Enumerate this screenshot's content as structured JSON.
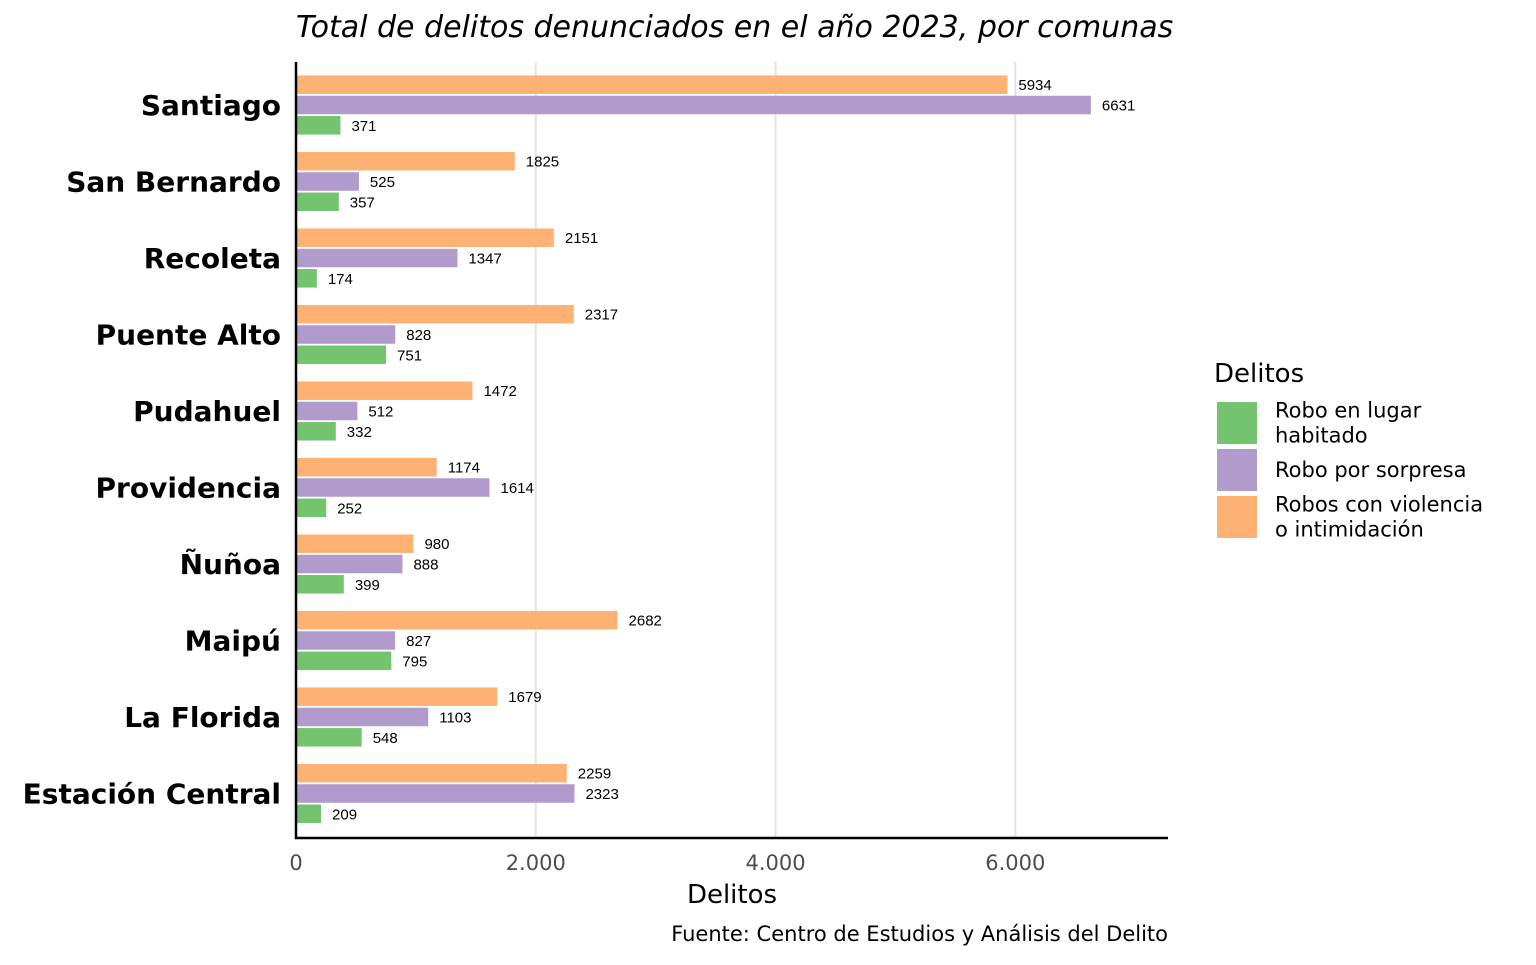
{
  "chart_data": {
    "type": "bar",
    "orientation": "horizontal",
    "title": "Total de delitos denunciados en el año 2023, por comunas",
    "xlabel": "Delitos",
    "ylabel": "",
    "caption": "Fuente: Centro de Estudios y Análisis del Delito",
    "xlim": [
      0,
      7300
    ],
    "x_ticks": [
      0,
      2000,
      4000,
      6000
    ],
    "x_tick_labels": [
      "0",
      "2.000",
      "4.000",
      "6.000"
    ],
    "grid": "vertical major",
    "legend_position": "right",
    "legend_title": "Delitos",
    "categories": [
      "Santiago",
      "San Bernardo",
      "Recoleta",
      "Puente Alto",
      "Pudahuel",
      "Providencia",
      "Ñuñoa",
      "Maipú",
      "La Florida",
      "Estación Central"
    ],
    "series": [
      {
        "name": "Robos con violencia o intimidación",
        "legend_lines": [
          "Robos con violencia",
          "o intimidación"
        ],
        "color": "#fdb274",
        "values": [
          5934,
          1825,
          2151,
          2317,
          1472,
          1174,
          980,
          2682,
          1679,
          2259
        ]
      },
      {
        "name": "Robo por sorpresa",
        "legend_lines": [
          "Robo por sorpresa"
        ],
        "color": "#b09bcc",
        "values": [
          6631,
          525,
          1347,
          828,
          512,
          1614,
          888,
          827,
          1103,
          2323
        ]
      },
      {
        "name": "Robo en lugar habitado",
        "legend_lines": [
          "Robo en lugar",
          "habitado"
        ],
        "color": "#73c36f",
        "values": [
          371,
          357,
          174,
          751,
          332,
          252,
          399,
          795,
          548,
          209
        ]
      }
    ],
    "legend_order": [
      2,
      1,
      0
    ]
  }
}
